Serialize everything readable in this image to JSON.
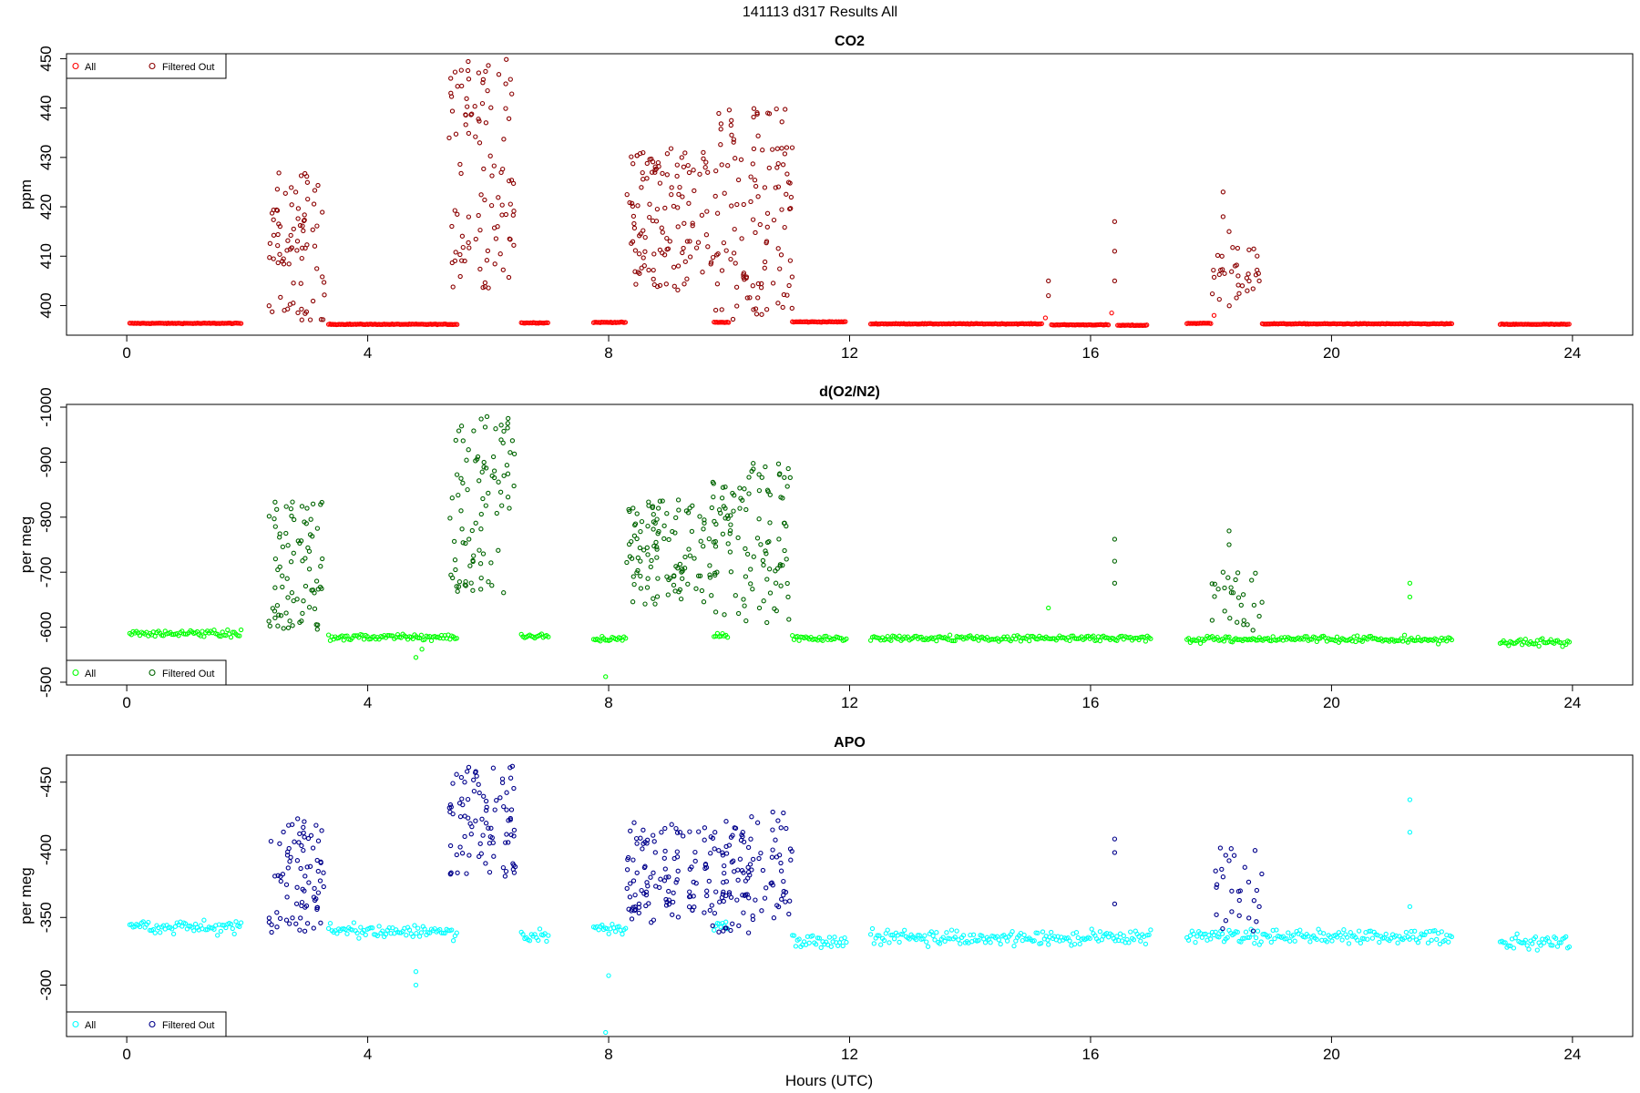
{
  "title": "141113   d317   Results All",
  "xlabel": "Hours (UTC)",
  "colors": {
    "co2_all": "#ff0000",
    "co2_filtered": "#8b0000",
    "o2_all": "#00ff00",
    "o2_filtered": "#006400",
    "apo_all": "#00ffff",
    "apo_filtered": "#00008b"
  },
  "chart_data": [
    {
      "type": "scatter",
      "title": "CO2",
      "ylabel": "ppm",
      "xlim": [
        -1.0,
        25.0
      ],
      "ylim": [
        394,
        451
      ],
      "xticks": [
        0,
        4,
        8,
        12,
        16,
        20,
        24
      ],
      "yticks": [
        400,
        410,
        420,
        430,
        440,
        450
      ],
      "grid": false,
      "legend_position": "top-left",
      "legend": [
        "All",
        "Filtered Out"
      ],
      "series": [
        {
          "name": "All",
          "baseline_segments": [
            [
              0.05,
              1.9,
              396.4
            ],
            [
              3.35,
              5.5,
              396.2
            ],
            [
              6.55,
              7.0,
              396.5
            ],
            [
              7.75,
              8.3,
              396.6
            ],
            [
              9.75,
              10.0,
              396.6
            ],
            [
              11.05,
              11.95,
              396.7
            ],
            [
              12.35,
              15.2,
              396.3
            ],
            [
              15.35,
              16.3,
              396.1
            ],
            [
              16.45,
              16.95,
              396.0
            ],
            [
              17.6,
              18.0,
              396.4
            ],
            [
              18.85,
              22.0,
              396.3
            ],
            [
              22.8,
              23.95,
              396.2
            ]
          ],
          "note_points": [
            [
              15.25,
              397.5
            ],
            [
              16.35,
              398.5
            ],
            [
              18.05,
              398.0
            ]
          ]
        },
        {
          "name": "Filtered Out",
          "spikes": [
            [
              15.3,
              405
            ],
            [
              15.3,
              402
            ],
            [
              16.4,
              417
            ],
            [
              16.4,
              411
            ],
            [
              16.4,
              405
            ],
            [
              18.2,
              423
            ],
            [
              18.2,
              418
            ],
            [
              18.3,
              415
            ],
            [
              18.45,
              406
            ],
            [
              18.6,
              403
            ],
            [
              18.8,
              405
            ]
          ],
          "clusters": [
            {
              "x": [
                2.35,
                3.3
              ],
              "y": [
                397,
                427
              ],
              "n": 80
            },
            {
              "x": [
                5.35,
                6.45
              ],
              "y": [
                403,
                450
              ],
              "n": 100
            },
            {
              "x": [
                8.3,
                9.7
              ],
              "y": [
                403,
                432
              ],
              "n": 120
            },
            {
              "x": [
                9.7,
                11.05
              ],
              "y": [
                397,
                440
              ],
              "n": 120
            },
            {
              "x": [
                18.0,
                18.85
              ],
              "y": [
                398,
                412
              ],
              "n": 30
            }
          ]
        }
      ]
    },
    {
      "type": "scatter",
      "title": "d(O2/N2)",
      "ylabel": "per meg",
      "xlim": [
        -1.0,
        25.0
      ],
      "ylim": [
        -1005,
        -495
      ],
      "y_reversed": true,
      "xticks": [
        0,
        4,
        8,
        12,
        16,
        20,
        24
      ],
      "yticks": [
        -500,
        -600,
        -700,
        -800,
        -900,
        -1000
      ],
      "grid": false,
      "legend_position": "bottom-left",
      "legend": [
        "All",
        "Filtered Out"
      ],
      "series": [
        {
          "name": "All",
          "band_segments": [
            [
              0.05,
              1.9,
              -588
            ],
            [
              3.35,
              5.5,
              -582
            ],
            [
              6.55,
              7.0,
              -582
            ],
            [
              7.75,
              8.3,
              -578
            ],
            [
              9.75,
              10.0,
              -585
            ],
            [
              11.05,
              11.95,
              -580
            ],
            [
              12.35,
              17.0,
              -580
            ],
            [
              17.6,
              22.0,
              -578
            ],
            [
              22.8,
              23.95,
              -572
            ]
          ],
          "outliers": [
            [
              7.95,
              -510
            ],
            [
              4.8,
              -545
            ],
            [
              4.9,
              -560
            ],
            [
              15.3,
              -635
            ],
            [
              21.3,
              -655
            ],
            [
              21.3,
              -680
            ]
          ]
        },
        {
          "name": "Filtered Out",
          "spikes": [
            [
              16.4,
              -680
            ],
            [
              16.4,
              -720
            ],
            [
              16.4,
              -760
            ],
            [
              18.2,
              -700
            ],
            [
              18.3,
              -750
            ],
            [
              18.3,
              -775
            ],
            [
              18.5,
              -640
            ],
            [
              18.8,
              -620
            ]
          ],
          "clusters": [
            {
              "x": [
                2.35,
                3.3
              ],
              "y": [
                -830,
                -595
              ],
              "n": 80
            },
            {
              "x": [
                5.35,
                6.45
              ],
              "y": [
                -985,
                -660
              ],
              "n": 90
            },
            {
              "x": [
                8.3,
                9.7
              ],
              "y": [
                -835,
                -640
              ],
              "n": 110
            },
            {
              "x": [
                9.7,
                11.05
              ],
              "y": [
                -900,
                -605
              ],
              "n": 110
            },
            {
              "x": [
                18.0,
                18.85
              ],
              "y": [
                -700,
                -590
              ],
              "n": 25
            }
          ]
        }
      ]
    },
    {
      "type": "scatter",
      "title": "APO",
      "ylabel": "per meg",
      "xlim": [
        -1.0,
        25.0
      ],
      "ylim": [
        -470,
        -262
      ],
      "y_reversed": true,
      "xticks": [
        0,
        4,
        8,
        12,
        16,
        20,
        24
      ],
      "yticks": [
        -300,
        -350,
        -400,
        -450
      ],
      "grid": false,
      "legend_position": "bottom-left",
      "legend": [
        "All",
        "Filtered Out"
      ],
      "series": [
        {
          "name": "All",
          "band_segments": [
            [
              0.05,
              1.9,
              -343
            ],
            [
              3.35,
              5.5,
              -340
            ],
            [
              6.55,
              7.0,
              -337
            ],
            [
              7.75,
              8.3,
              -342
            ],
            [
              9.75,
              10.0,
              -345
            ],
            [
              11.05,
              11.95,
              -333
            ],
            [
              12.35,
              17.0,
              -335
            ],
            [
              17.6,
              22.0,
              -336
            ],
            [
              22.8,
              23.95,
              -331
            ]
          ],
          "outliers": [
            [
              7.95,
              -265
            ],
            [
              8.0,
              -307
            ],
            [
              4.8,
              -300
            ],
            [
              4.8,
              -310
            ],
            [
              15.3,
              -330
            ],
            [
              21.3,
              -413
            ],
            [
              21.3,
              -437
            ],
            [
              21.3,
              -358
            ]
          ]
        },
        {
          "name": "Filtered Out",
          "spikes": [
            [
              16.4,
              -360
            ],
            [
              16.4,
              -398
            ],
            [
              16.4,
              -408
            ],
            [
              18.2,
              -380
            ],
            [
              18.3,
              -392
            ],
            [
              18.7,
              -340
            ],
            [
              18.8,
              -358
            ]
          ],
          "clusters": [
            {
              "x": [
                2.35,
                3.3
              ],
              "y": [
                -425,
                -338
              ],
              "n": 80
            },
            {
              "x": [
                5.35,
                6.45
              ],
              "y": [
                -462,
                -375
              ],
              "n": 90
            },
            {
              "x": [
                8.3,
                9.7
              ],
              "y": [
                -422,
                -345
              ],
              "n": 110
            },
            {
              "x": [
                9.7,
                11.05
              ],
              "y": [
                -428,
                -338
              ],
              "n": 110
            },
            {
              "x": [
                18.0,
                18.85
              ],
              "y": [
                -402,
                -335
              ],
              "n": 25
            }
          ]
        }
      ]
    }
  ]
}
